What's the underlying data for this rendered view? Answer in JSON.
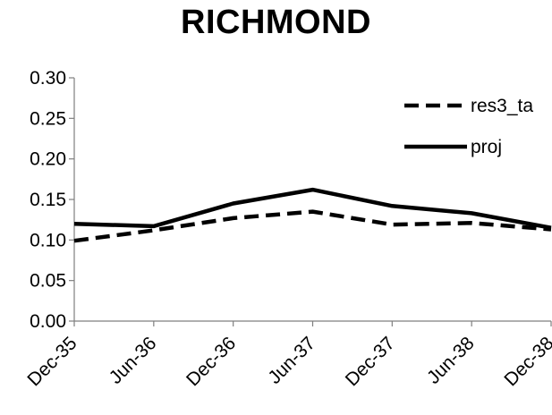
{
  "chart_data": {
    "type": "line",
    "title": "RICHMOND",
    "xlabel": "",
    "ylabel": "",
    "categories": [
      "Dec-35",
      "Jun-36",
      "Dec-36",
      "Jun-37",
      "Dec-37",
      "Jun-38",
      "Dec-38"
    ],
    "ylim": [
      0,
      0.3
    ],
    "yticks": [
      "0.00",
      "0.05",
      "0.10",
      "0.15",
      "0.20",
      "0.25",
      "0.30"
    ],
    "grid": false,
    "legend_position": "top-right",
    "series": [
      {
        "name": "res3_ta",
        "style": "dashed",
        "color": "#000000",
        "values": [
          0.099,
          0.112,
          0.127,
          0.135,
          0.119,
          0.121,
          0.113
        ]
      },
      {
        "name": "proj",
        "style": "solid",
        "color": "#000000",
        "values": [
          0.12,
          0.117,
          0.145,
          0.162,
          0.142,
          0.133,
          0.115
        ]
      }
    ]
  }
}
